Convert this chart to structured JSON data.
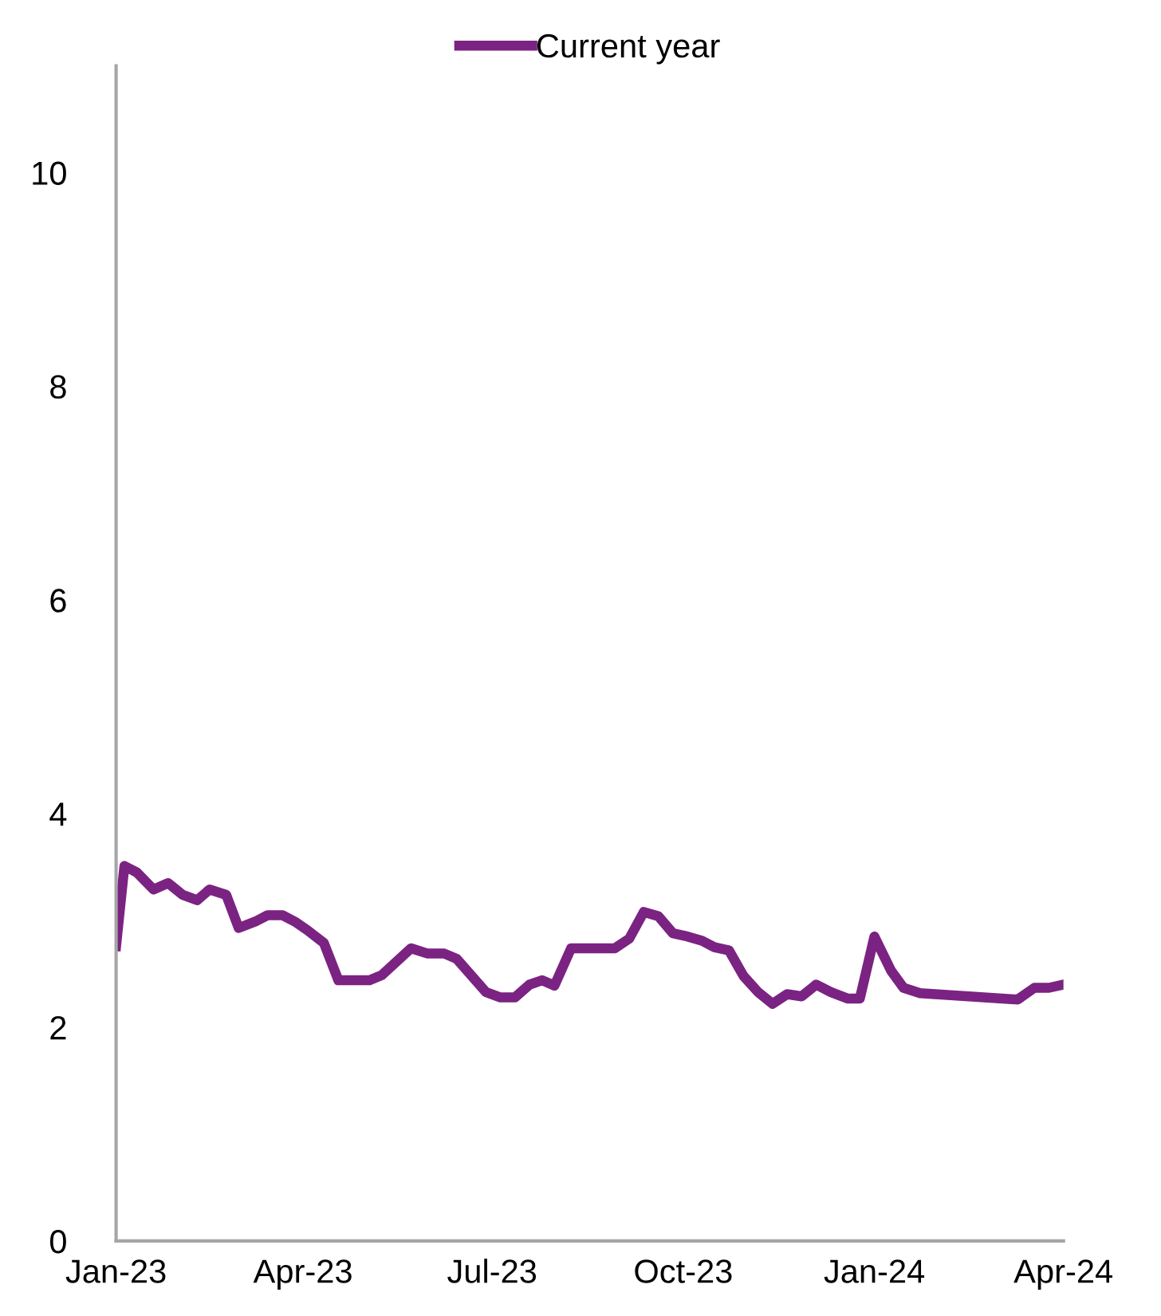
{
  "chart_data": {
    "type": "line",
    "legend": "top",
    "x": [
      "2023-01-01",
      "2023-01-05",
      "2023-01-11",
      "2023-01-19",
      "2023-01-26",
      "2023-02-02",
      "2023-02-09",
      "2023-02-15",
      "2023-02-23",
      "2023-03-01",
      "2023-03-09",
      "2023-03-15",
      "2023-03-22",
      "2023-03-28",
      "2023-04-03",
      "2023-04-11",
      "2023-04-18",
      "2023-05-03",
      "2023-05-09",
      "2023-05-23",
      "2023-05-31",
      "2023-06-08",
      "2023-06-14",
      "2023-06-28",
      "2023-07-05",
      "2023-07-12",
      "2023-07-19",
      "2023-07-25",
      "2023-07-31",
      "2023-08-08",
      "2023-08-29",
      "2023-09-05",
      "2023-09-12",
      "2023-09-19",
      "2023-09-26",
      "2023-10-03",
      "2023-10-10",
      "2023-10-16",
      "2023-10-23",
      "2023-10-30",
      "2023-11-06",
      "2023-11-13",
      "2023-11-20",
      "2023-11-27",
      "2023-12-04",
      "2023-12-11",
      "2023-12-19",
      "2023-12-25",
      "2024-01-01",
      "2024-01-09",
      "2024-01-15",
      "2024-01-23",
      "2024-03-10",
      "2024-03-18",
      "2024-03-25",
      "2024-04-01"
    ],
    "series": [
      {
        "name": "Current year",
        "color": "#7b2382",
        "values": [
          2.76,
          3.51,
          3.45,
          3.29,
          3.35,
          3.24,
          3.19,
          3.29,
          3.24,
          2.93,
          2.99,
          3.05,
          3.05,
          2.99,
          2.91,
          2.79,
          2.44,
          2.44,
          2.49,
          2.74,
          2.69,
          2.69,
          2.64,
          2.33,
          2.28,
          2.28,
          2.4,
          2.44,
          2.39,
          2.74,
          2.74,
          2.83,
          3.08,
          3.04,
          2.88,
          2.85,
          2.81,
          2.75,
          2.72,
          2.48,
          2.33,
          2.22,
          2.31,
          2.29,
          2.4,
          2.33,
          2.27,
          2.27,
          2.85,
          2.53,
          2.37,
          2.32,
          2.26,
          2.37,
          2.37,
          2.4
        ]
      }
    ],
    "xlim": [
      "2023-01-01",
      "2024-04-01"
    ],
    "xticks": [
      {
        "value": "2023-01-01",
        "label": "Jan-23"
      },
      {
        "value": "2023-04-01",
        "label": "Apr-23"
      },
      {
        "value": "2023-07-01",
        "label": "Jul-23"
      },
      {
        "value": "2023-10-01",
        "label": "Oct-23"
      },
      {
        "value": "2024-01-01",
        "label": "Jan-24"
      },
      {
        "value": "2024-04-01",
        "label": "Apr-24"
      }
    ],
    "ylim": [
      0,
      11
    ],
    "yticks": [
      0,
      2,
      4,
      6,
      8,
      10
    ],
    "grid": false,
    "line_style": "solid",
    "marker": "none"
  }
}
